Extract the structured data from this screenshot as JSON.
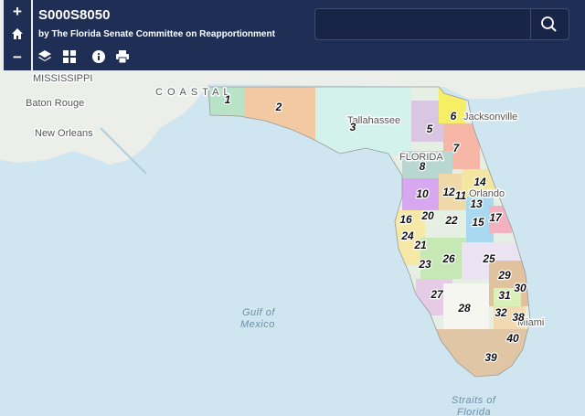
{
  "header": {
    "title": "S000S8050",
    "subtitle": "by The Florida Senate Committee on Reapportionment"
  },
  "controls": {
    "zoom_in": "+",
    "zoom_out": "−"
  },
  "map": {
    "place_labels": [
      "MISSISSIPPI",
      "Baton Rouge",
      "New Orleans",
      "Tallahassee",
      "Jacksonville",
      "FLORIDA",
      "Orlando",
      "Miami"
    ],
    "region_labels": [
      "COASTAL"
    ],
    "water_labels": [
      "Gulf of",
      "Mexico",
      "Straits of",
      "Florida"
    ],
    "districts": [
      "1",
      "2",
      "3",
      "5",
      "6",
      "7",
      "8",
      "10",
      "12",
      "11",
      "14",
      "13",
      "16",
      "20",
      "22",
      "15",
      "17",
      "24",
      "21",
      "26",
      "25",
      "23",
      "29",
      "30",
      "31",
      "27",
      "28",
      "32",
      "38",
      "40",
      "39"
    ]
  }
}
